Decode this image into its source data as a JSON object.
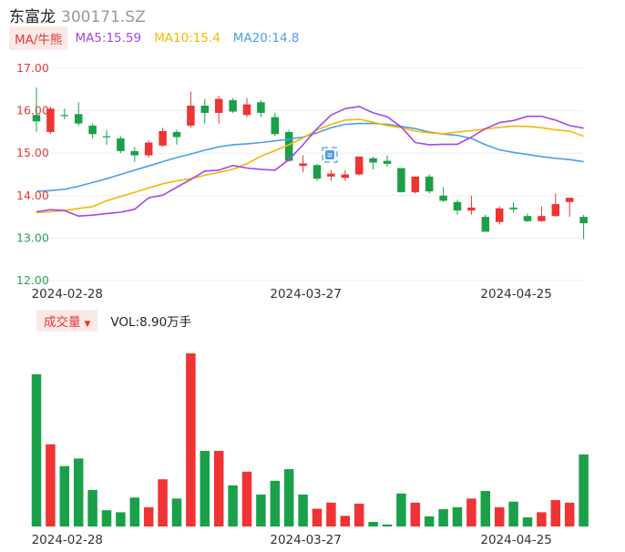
{
  "header": {
    "name": "东富龙",
    "code": "300171.SZ"
  },
  "indicators": {
    "ma_button": "MA/牛熊",
    "ma5": "MA5:15.59",
    "ma10": "MA10:15.4",
    "ma20": "MA20:14.8"
  },
  "volume_header": {
    "button": "成交量",
    "arrow": "▼",
    "value": "VOL:8.90万手"
  },
  "colors": {
    "up": "#f03333",
    "down": "#1aa049",
    "ma5": "#a647e8",
    "ma10": "#f5b800",
    "ma20": "#4d9fe8"
  },
  "chart_data": [
    {
      "type": "candlestick",
      "y_ticks": [
        "17.00",
        "16.00",
        "15.00",
        "14.00",
        "13.00",
        "12.00"
      ],
      "ylim": [
        12.0,
        17.0
      ],
      "x_labels": [
        {
          "index": 2,
          "label": "2024-02-28"
        },
        {
          "index": 19,
          "label": "2024-03-27"
        },
        {
          "index": 34,
          "label": "2024-04-25"
        }
      ],
      "candles": [
        {
          "open": 15.9,
          "high": 16.55,
          "low": 15.5,
          "close": 15.75
        },
        {
          "open": 15.5,
          "high": 16.1,
          "low": 15.45,
          "close": 16.05
        },
        {
          "open": 15.9,
          "high": 16.05,
          "low": 15.8,
          "close": 15.88
        },
        {
          "open": 15.92,
          "high": 16.2,
          "low": 15.65,
          "close": 15.7
        },
        {
          "open": 15.65,
          "high": 15.7,
          "low": 15.35,
          "close": 15.45
        },
        {
          "open": 15.4,
          "high": 15.55,
          "low": 15.2,
          "close": 15.38
        },
        {
          "open": 15.35,
          "high": 15.4,
          "low": 15.0,
          "close": 15.05
        },
        {
          "open": 15.05,
          "high": 15.15,
          "low": 14.8,
          "close": 14.95
        },
        {
          "open": 14.95,
          "high": 15.3,
          "low": 14.9,
          "close": 15.25
        },
        {
          "open": 15.18,
          "high": 15.6,
          "low": 15.15,
          "close": 15.52
        },
        {
          "open": 15.5,
          "high": 15.55,
          "low": 15.2,
          "close": 15.38
        },
        {
          "open": 15.65,
          "high": 16.45,
          "low": 15.6,
          "close": 16.12
        },
        {
          "open": 16.12,
          "high": 16.28,
          "low": 15.7,
          "close": 15.95
        },
        {
          "open": 15.95,
          "high": 16.35,
          "low": 15.7,
          "close": 16.28
        },
        {
          "open": 16.25,
          "high": 16.3,
          "low": 15.95,
          "close": 15.98
        },
        {
          "open": 15.9,
          "high": 16.3,
          "low": 15.85,
          "close": 16.15
        },
        {
          "open": 16.2,
          "high": 16.25,
          "low": 15.85,
          "close": 15.95
        },
        {
          "open": 15.85,
          "high": 15.95,
          "low": 15.4,
          "close": 15.45
        },
        {
          "open": 15.5,
          "high": 15.55,
          "low": 14.8,
          "close": 14.82
        },
        {
          "open": 14.7,
          "high": 14.95,
          "low": 14.55,
          "close": 14.76
        },
        {
          "open": 14.72,
          "high": 14.75,
          "low": 14.35,
          "close": 14.4
        },
        {
          "open": 14.45,
          "high": 14.6,
          "low": 14.35,
          "close": 14.52
        },
        {
          "open": 14.42,
          "high": 14.6,
          "low": 14.35,
          "close": 14.5
        },
        {
          "open": 14.5,
          "high": 14.92,
          "low": 14.48,
          "close": 14.92
        },
        {
          "open": 14.88,
          "high": 14.92,
          "low": 14.62,
          "close": 14.78
        },
        {
          "open": 14.82,
          "high": 14.95,
          "low": 14.68,
          "close": 14.75
        },
        {
          "open": 14.65,
          "high": 14.65,
          "low": 14.08,
          "close": 14.08
        },
        {
          "open": 14.08,
          "high": 14.45,
          "low": 14.05,
          "close": 14.45
        },
        {
          "open": 14.45,
          "high": 14.5,
          "low": 14.05,
          "close": 14.1
        },
        {
          "open": 14.0,
          "high": 14.2,
          "low": 13.85,
          "close": 13.88
        },
        {
          "open": 13.85,
          "high": 13.9,
          "low": 13.55,
          "close": 13.65
        },
        {
          "open": 13.65,
          "high": 14.0,
          "low": 13.55,
          "close": 13.72
        },
        {
          "open": 13.5,
          "high": 13.55,
          "low": 13.15,
          "close": 13.15
        },
        {
          "open": 13.38,
          "high": 13.75,
          "low": 13.32,
          "close": 13.7
        },
        {
          "open": 13.72,
          "high": 13.85,
          "low": 13.6,
          "close": 13.68
        },
        {
          "open": 13.52,
          "high": 13.58,
          "low": 13.38,
          "close": 13.4
        },
        {
          "open": 13.4,
          "high": 13.75,
          "low": 13.38,
          "close": 13.52
        },
        {
          "open": 13.52,
          "high": 14.05,
          "low": 13.5,
          "close": 13.8
        },
        {
          "open": 13.85,
          "high": 13.95,
          "low": 13.5,
          "close": 13.95
        },
        {
          "open": 13.5,
          "high": 13.55,
          "low": 12.98,
          "close": 13.35
        }
      ],
      "ma5": [
        13.62,
        13.67,
        13.65,
        13.52,
        13.54,
        13.58,
        13.61,
        13.68,
        13.95,
        14.01,
        14.2,
        14.38,
        14.58,
        14.6,
        14.71,
        14.65,
        14.62,
        14.6,
        14.85,
        15.2,
        15.58,
        15.9,
        16.05,
        16.1,
        15.95,
        15.86,
        15.62,
        15.25,
        15.2,
        15.21,
        15.21,
        15.38,
        15.58,
        15.72,
        15.77,
        15.87,
        15.87,
        15.78,
        15.65,
        15.59
      ],
      "ma10": [
        13.6,
        13.62,
        13.65,
        13.7,
        13.74,
        13.88,
        13.98,
        14.08,
        14.18,
        14.28,
        14.35,
        14.4,
        14.48,
        14.55,
        14.62,
        14.75,
        14.93,
        15.06,
        15.2,
        15.36,
        15.55,
        15.68,
        15.78,
        15.8,
        15.73,
        15.65,
        15.6,
        15.52,
        15.48,
        15.46,
        15.5,
        15.53,
        15.57,
        15.61,
        15.64,
        15.63,
        15.6,
        15.55,
        15.52,
        15.4
      ],
      "ma20": [
        14.1,
        14.12,
        14.15,
        14.22,
        14.31,
        14.4,
        14.5,
        14.6,
        14.7,
        14.8,
        14.9,
        14.98,
        15.07,
        15.15,
        15.2,
        15.22,
        15.25,
        15.29,
        15.33,
        15.38,
        15.48,
        15.6,
        15.68,
        15.7,
        15.7,
        15.68,
        15.63,
        15.58,
        15.5,
        15.45,
        15.42,
        15.35,
        15.2,
        15.08,
        15.02,
        14.97,
        14.92,
        14.88,
        14.85,
        14.8
      ]
    },
    {
      "type": "bar",
      "title": "成交量",
      "values": [
        30.0,
        16.2,
        11.9,
        13.4,
        7.2,
        3.2,
        2.8,
        5.7,
        3.8,
        9.3,
        5.5,
        34.1,
        14.9,
        14.9,
        8.1,
        10.8,
        6.3,
        9.0,
        11.3,
        6.3,
        3.5,
        4.7,
        2.1,
        4.5,
        0.9,
        0.4,
        6.5,
        4.7,
        2.0,
        3.4,
        3.8,
        5.5,
        7.0,
        3.8,
        4.9,
        1.8,
        2.8,
        5.2,
        4.7,
        14.2
      ],
      "direction": [
        "down",
        "up",
        "down",
        "down",
        "down",
        "down",
        "down",
        "down",
        "up",
        "up",
        "down",
        "up",
        "down",
        "up",
        "down",
        "up",
        "down",
        "down",
        "down",
        "down",
        "up",
        "up",
        "up",
        "up",
        "down",
        "down",
        "down",
        "up",
        "down",
        "down",
        "down",
        "up",
        "down",
        "up",
        "down",
        "down",
        "up",
        "up",
        "up",
        "down"
      ]
    }
  ],
  "x_axis_bottom": [
    "2024-02-28",
    "2024-03-27",
    "2024-04-25"
  ]
}
